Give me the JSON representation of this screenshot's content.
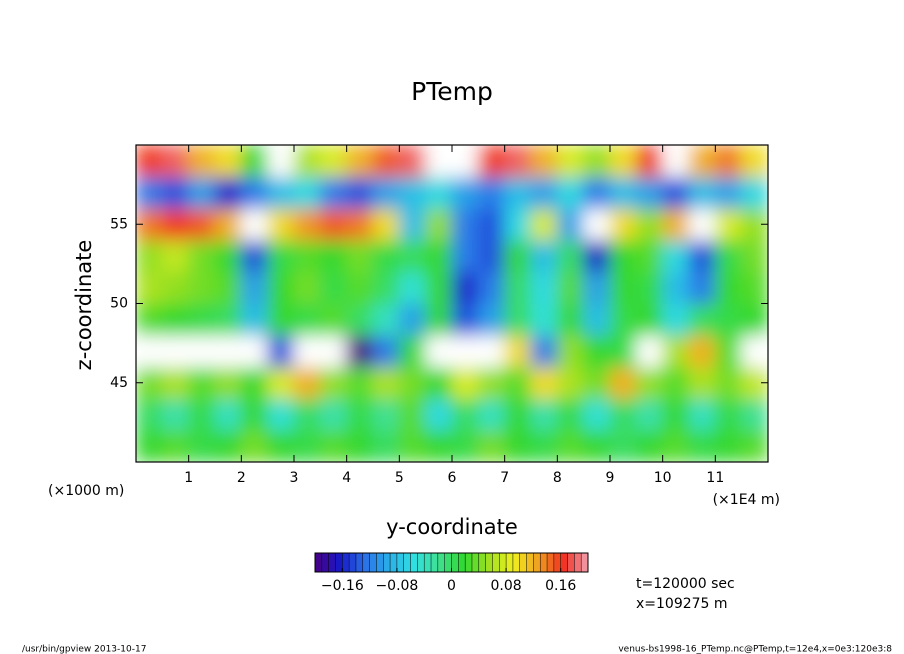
{
  "chart_data": {
    "type": "contour",
    "title": "PTemp",
    "x_label": "y-coordinate",
    "y_label": "z-coordinate",
    "x_unit": "(×1E4 m)",
    "y_unit": "(×1000 m)",
    "info": [
      "t=120000 sec",
      "x=109275 m"
    ],
    "footer_left": "/usr/bin/gpview  2013-10-17",
    "footer_right": "venus-bs1998-16_PTemp.nc@PTemp,t=12e4,x=0e3:120e3:8",
    "xlim": [
      0,
      12
    ],
    "ylim": [
      40,
      60
    ],
    "xticks": [
      1,
      2,
      3,
      4,
      5,
      6,
      7,
      8,
      9,
      10,
      11
    ],
    "yticks": [
      45,
      50,
      55
    ],
    "x": [
      0.25,
      0.75,
      1.25,
      1.75,
      2.25,
      2.75,
      3.25,
      3.75,
      4.25,
      4.75,
      5.25,
      5.75,
      6.25,
      6.75,
      7.25,
      7.75,
      8.25,
      8.75,
      9.25,
      9.75,
      10.25,
      10.75,
      11.25,
      11.75
    ],
    "z": [
      41,
      43,
      45,
      47,
      49,
      51,
      53,
      55,
      57,
      59
    ],
    "values": [
      [
        0.02,
        0.03,
        0.01,
        0.02,
        0.04,
        0.02,
        0.01,
        0.03,
        0.02,
        0.0,
        0.03,
        0.02,
        0.01,
        0.04,
        0.02,
        0.01,
        0.03,
        0.02,
        0.0,
        0.02,
        0.03,
        0.01,
        0.02,
        0.03
      ],
      [
        0.0,
        -0.03,
        0.01,
        -0.04,
        0.02,
        -0.05,
        0.0,
        -0.03,
        0.01,
        -0.02,
        0.03,
        -0.06,
        0.0,
        -0.04,
        0.02,
        -0.03,
        0.01,
        -0.05,
        0.0,
        -0.03,
        0.02,
        -0.04,
        0.01,
        -0.02
      ],
      [
        0.04,
        0.06,
        0.03,
        0.05,
        0.02,
        0.08,
        0.12,
        0.05,
        0.03,
        0.06,
        0.04,
        0.02,
        0.08,
        0.05,
        0.03,
        0.1,
        0.06,
        0.04,
        0.12,
        0.05,
        0.03,
        0.06,
        0.04,
        0.07
      ],
      [
        -0.25,
        -0.25,
        -0.25,
        -0.25,
        -0.25,
        -0.14,
        -0.25,
        -0.25,
        -0.2,
        -0.12,
        0.02,
        0.25,
        0.25,
        0.25,
        0.1,
        -0.12,
        0.05,
        0.02,
        0.01,
        0.25,
        0.06,
        0.12,
        0.03,
        0.25
      ],
      [
        0.03,
        0.02,
        0.01,
        0.0,
        -0.08,
        0.02,
        0.01,
        0.03,
        0.0,
        -0.04,
        -0.1,
        0.02,
        -0.14,
        -0.1,
        0.0,
        -0.05,
        0.02,
        -0.08,
        0.01,
        0.02,
        -0.06,
        0.0,
        0.01,
        0.02
      ],
      [
        0.06,
        0.05,
        0.04,
        0.03,
        -0.1,
        0.02,
        0.04,
        0.01,
        0.03,
        0.0,
        -0.05,
        0.02,
        -0.16,
        -0.12,
        0.0,
        -0.06,
        0.03,
        -0.1,
        0.02,
        0.01,
        -0.08,
        -0.12,
        0.02,
        0.03
      ],
      [
        0.05,
        0.07,
        0.04,
        0.02,
        -0.14,
        0.01,
        0.03,
        0.02,
        0.04,
        0.01,
        0.0,
        0.02,
        -0.12,
        -0.14,
        0.02,
        -0.08,
        0.0,
        -0.16,
        0.02,
        0.03,
        -0.06,
        -0.14,
        0.01,
        0.04
      ],
      [
        0.14,
        0.16,
        0.15,
        0.12,
        -0.25,
        0.1,
        0.13,
        0.15,
        0.14,
        0.1,
        -0.08,
        0.05,
        -0.12,
        -0.14,
        -0.06,
        0.08,
        -0.1,
        -0.25,
        0.1,
        0.05,
        0.12,
        -0.25,
        0.08,
        0.05
      ],
      [
        -0.12,
        -0.14,
        -0.1,
        -0.16,
        -0.12,
        -0.08,
        -0.06,
        -0.12,
        -0.14,
        -0.1,
        -0.08,
        -0.06,
        -0.1,
        -0.12,
        -0.08,
        -0.1,
        -0.06,
        -0.12,
        -0.08,
        -0.1,
        -0.14,
        -0.08,
        -0.1,
        -0.06
      ],
      [
        0.16,
        0.18,
        0.12,
        0.1,
        0.02,
        -0.25,
        0.06,
        0.08,
        0.12,
        0.15,
        0.18,
        0.25,
        0.25,
        0.16,
        0.18,
        0.12,
        0.08,
        0.05,
        0.1,
        0.16,
        0.25,
        0.12,
        0.14,
        0.1
      ]
    ],
    "clim": [
      -0.2,
      0.2
    ],
    "cticks": [
      {
        "value": -0.16,
        "label": "−0.16"
      },
      {
        "value": -0.08,
        "label": "−0.08"
      },
      0,
      0.08,
      0.16
    ],
    "colormap": [
      "#4b0082",
      "#1818c8",
      "#2a70e8",
      "#2ab0e8",
      "#30e0e0",
      "#40e090",
      "#30d830",
      "#a0e020",
      "#f0f020",
      "#f0a020",
      "#f03020",
      "#f0a0b0"
    ],
    "out_of_range_color": "#ffffff"
  }
}
